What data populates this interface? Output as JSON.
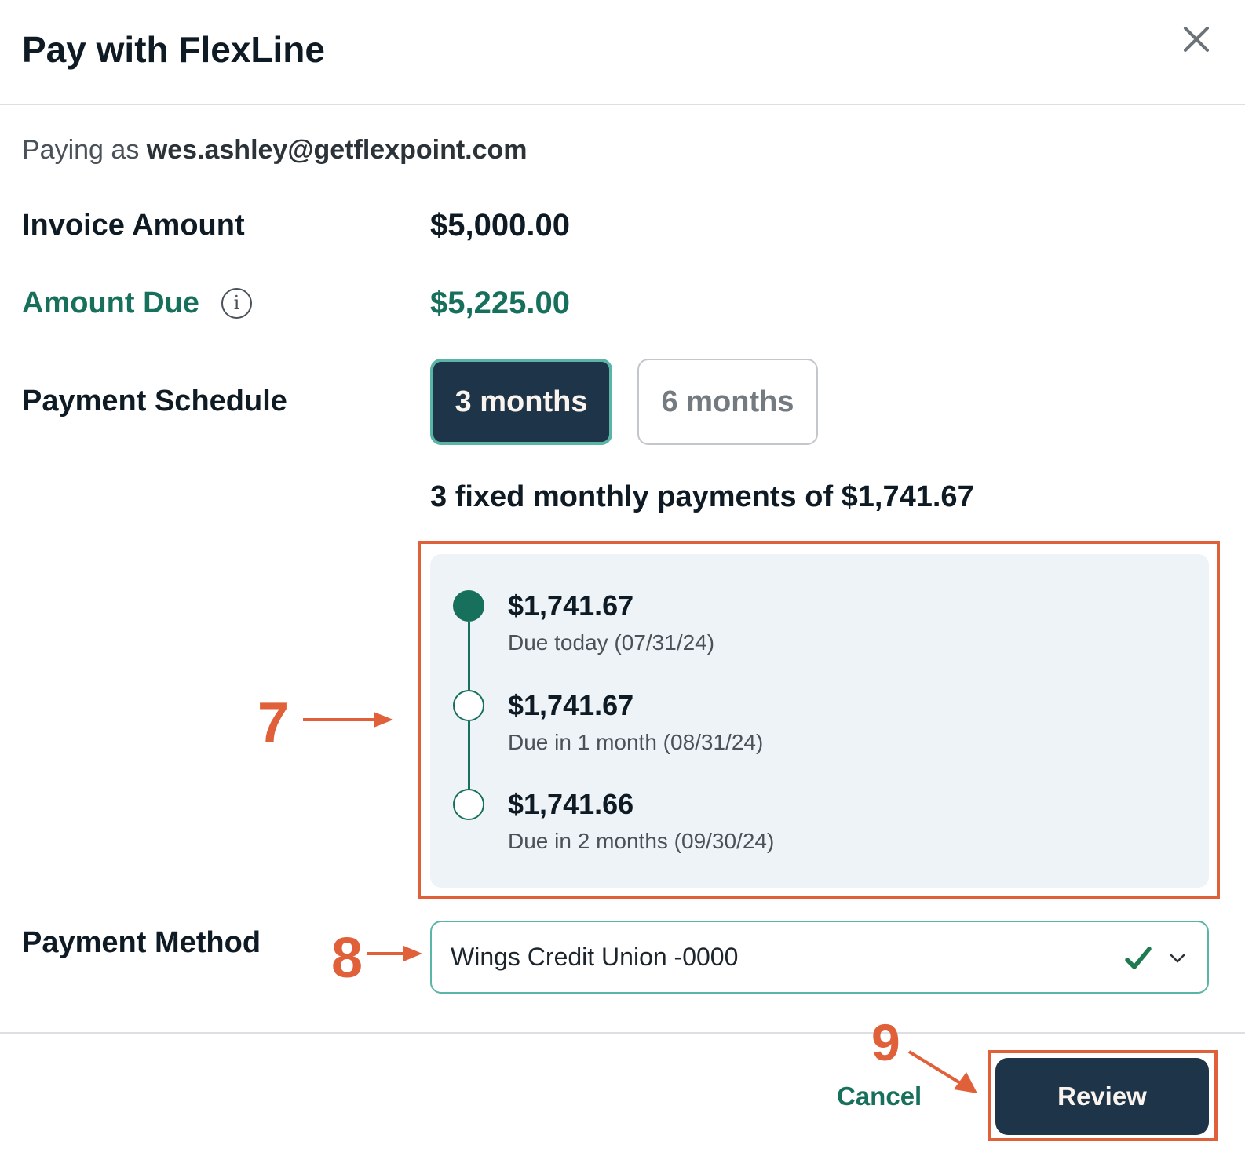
{
  "modal": {
    "title": "Pay with FlexLine",
    "close_icon": "close-icon"
  },
  "payer": {
    "prefix": "Paying as",
    "email": "wes.ashley@getflexpoint.com"
  },
  "invoice": {
    "label": "Invoice Amount",
    "value": "$5,000.00"
  },
  "amount_due": {
    "label": "Amount Due",
    "value": "$5,225.00",
    "info_icon": "info-icon",
    "info_glyph": "i"
  },
  "schedule": {
    "label": "Payment Schedule",
    "options": [
      {
        "label": "3 months",
        "selected": true
      },
      {
        "label": "6 months",
        "selected": false
      }
    ],
    "summary": "3 fixed monthly payments of $1,741.67",
    "payments": [
      {
        "amount": "$1,741.67",
        "due": "Due today (07/31/24)",
        "current": true
      },
      {
        "amount": "$1,741.67",
        "due": "Due in 1 month (08/31/24)",
        "current": false
      },
      {
        "amount": "$1,741.66",
        "due": "Due in 2 months (09/30/24)",
        "current": false
      }
    ]
  },
  "method": {
    "label": "Payment Method",
    "value": "Wings Credit Union -0000",
    "valid_icon": "check-icon",
    "chevron_icon": "chevron-down-icon"
  },
  "footer": {
    "cancel": "Cancel",
    "review": "Review"
  },
  "annotations": {
    "a7": "7",
    "a8": "8",
    "a9": "9"
  },
  "colors": {
    "accent": "#17705c",
    "primary_button": "#1e3549",
    "annotation": "#e0603a",
    "panel_bg": "#eef3f7"
  }
}
